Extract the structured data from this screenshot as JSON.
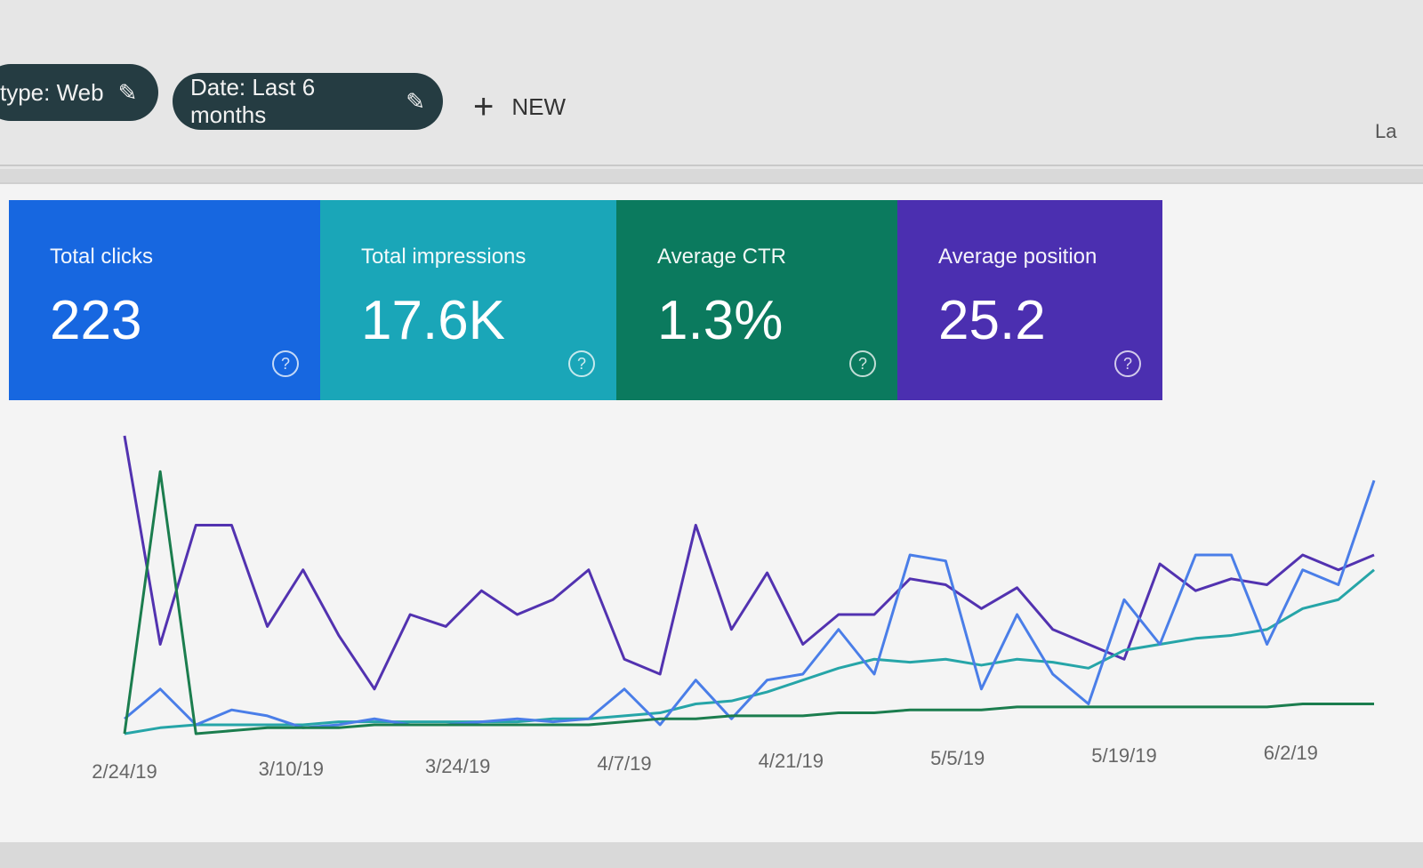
{
  "filters": [
    {
      "label": "type: Web",
      "icon": "pencil-icon"
    },
    {
      "label": "Date: Last 6 months",
      "icon": "pencil-icon"
    }
  ],
  "new_button": {
    "label": "NEW",
    "icon": "plus-icon"
  },
  "cut_off_text": "La",
  "metrics": [
    {
      "label": "Total clicks",
      "value": "223",
      "color": "#1767e0",
      "icon": "help-icon"
    },
    {
      "label": "Total impressions",
      "value": "17.6K",
      "color": "#1aa6b8",
      "icon": "help-icon"
    },
    {
      "label": "Average CTR",
      "value": "1.3%",
      "color": "#0b7a5e",
      "icon": "help-icon"
    },
    {
      "label": "Average position",
      "value": "25.2",
      "color": "#4b2fb0",
      "icon": "help-icon"
    }
  ],
  "chart_data": {
    "type": "line",
    "grid": false,
    "x_tick_labels": [
      "2/24/19",
      "3/10/19",
      "3/24/19",
      "4/7/19",
      "4/21/19",
      "5/5/19",
      "5/19/19",
      "6/2/19"
    ],
    "x": [
      "2/24/19",
      "2/27/19",
      "3/2/19",
      "3/5/19",
      "3/8/19",
      "3/11/19",
      "3/14/19",
      "3/17/19",
      "3/20/19",
      "3/23/19",
      "3/26/19",
      "3/29/19",
      "4/1/19",
      "4/4/19",
      "4/7/19",
      "4/10/19",
      "4/13/19",
      "4/16/19",
      "4/19/19",
      "4/22/19",
      "4/25/19",
      "4/28/19",
      "5/1/19",
      "5/4/19",
      "5/7/19",
      "5/10/19",
      "5/13/19",
      "5/16/19",
      "5/19/19",
      "5/22/19",
      "5/25/19",
      "5/28/19",
      "5/31/19",
      "6/3/19",
      "6/6/19",
      "6/9/19"
    ],
    "series": [
      {
        "metric": "Average position",
        "color": "#5232b0",
        "values": [
          100,
          30,
          70,
          70,
          36,
          55,
          33,
          15,
          40,
          36,
          48,
          40,
          45,
          55,
          25,
          20,
          70,
          35,
          54,
          30,
          40,
          40,
          52,
          50,
          42,
          49,
          35,
          30,
          25,
          57,
          48,
          52,
          50,
          60,
          55,
          60
        ]
      },
      {
        "metric": "Total impressions",
        "color": "#26a5a8",
        "values": [
          0,
          2,
          3,
          3,
          3,
          3,
          4,
          4,
          4,
          4,
          4,
          4,
          5,
          5,
          6,
          7,
          10,
          11,
          14,
          18,
          22,
          25,
          24,
          25,
          23,
          25,
          24,
          22,
          28,
          30,
          32,
          33,
          35,
          42,
          45,
          55
        ]
      },
      {
        "metric": "Total clicks",
        "color": "#4a7ee8",
        "values": [
          5,
          15,
          3,
          8,
          6,
          2,
          3,
          5,
          3,
          3,
          4,
          5,
          4,
          5,
          15,
          3,
          18,
          5,
          18,
          20,
          35,
          20,
          60,
          58,
          15,
          40,
          20,
          10,
          45,
          30,
          60,
          60,
          30,
          55,
          50,
          85
        ]
      },
      {
        "metric": "Average CTR",
        "color": "#1b7d4e",
        "values": [
          0,
          88,
          0,
          1,
          2,
          2,
          2,
          3,
          3,
          3,
          3,
          3,
          3,
          3,
          4,
          5,
          5,
          6,
          6,
          6,
          7,
          7,
          8,
          8,
          8,
          9,
          9,
          9,
          9,
          9,
          9,
          9,
          9,
          10,
          10,
          10
        ]
      }
    ]
  }
}
